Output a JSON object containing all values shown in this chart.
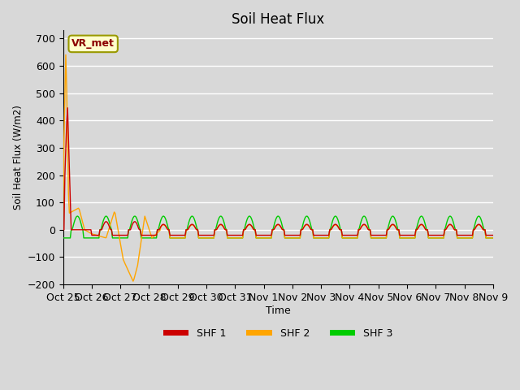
{
  "title": "Soil Heat Flux",
  "ylabel": "Soil Heat Flux (W/m2)",
  "xlabel": "Time",
  "ylim": [
    -200,
    730
  ],
  "yticks": [
    -200,
    -100,
    0,
    100,
    200,
    300,
    400,
    500,
    600,
    700
  ],
  "series_labels": [
    "SHF 1",
    "SHF 2",
    "SHF 3"
  ],
  "colors": [
    "#cc0000",
    "#ffa500",
    "#00cc00"
  ],
  "bg_color": "#d8d8d8",
  "grid_color": "#ffffff",
  "n_points": 480,
  "xtick_labels": [
    "Oct 25",
    "Oct 26",
    "Oct 27",
    "Oct 28",
    "Oct 29",
    "Oct 30",
    "Oct 31",
    "Nov 1",
    "Nov 2",
    "Nov 3",
    "Nov 4",
    "Nov 5",
    "Nov 6",
    "Nov 7",
    "Nov 8",
    "Nov 9"
  ],
  "n_days": 15
}
